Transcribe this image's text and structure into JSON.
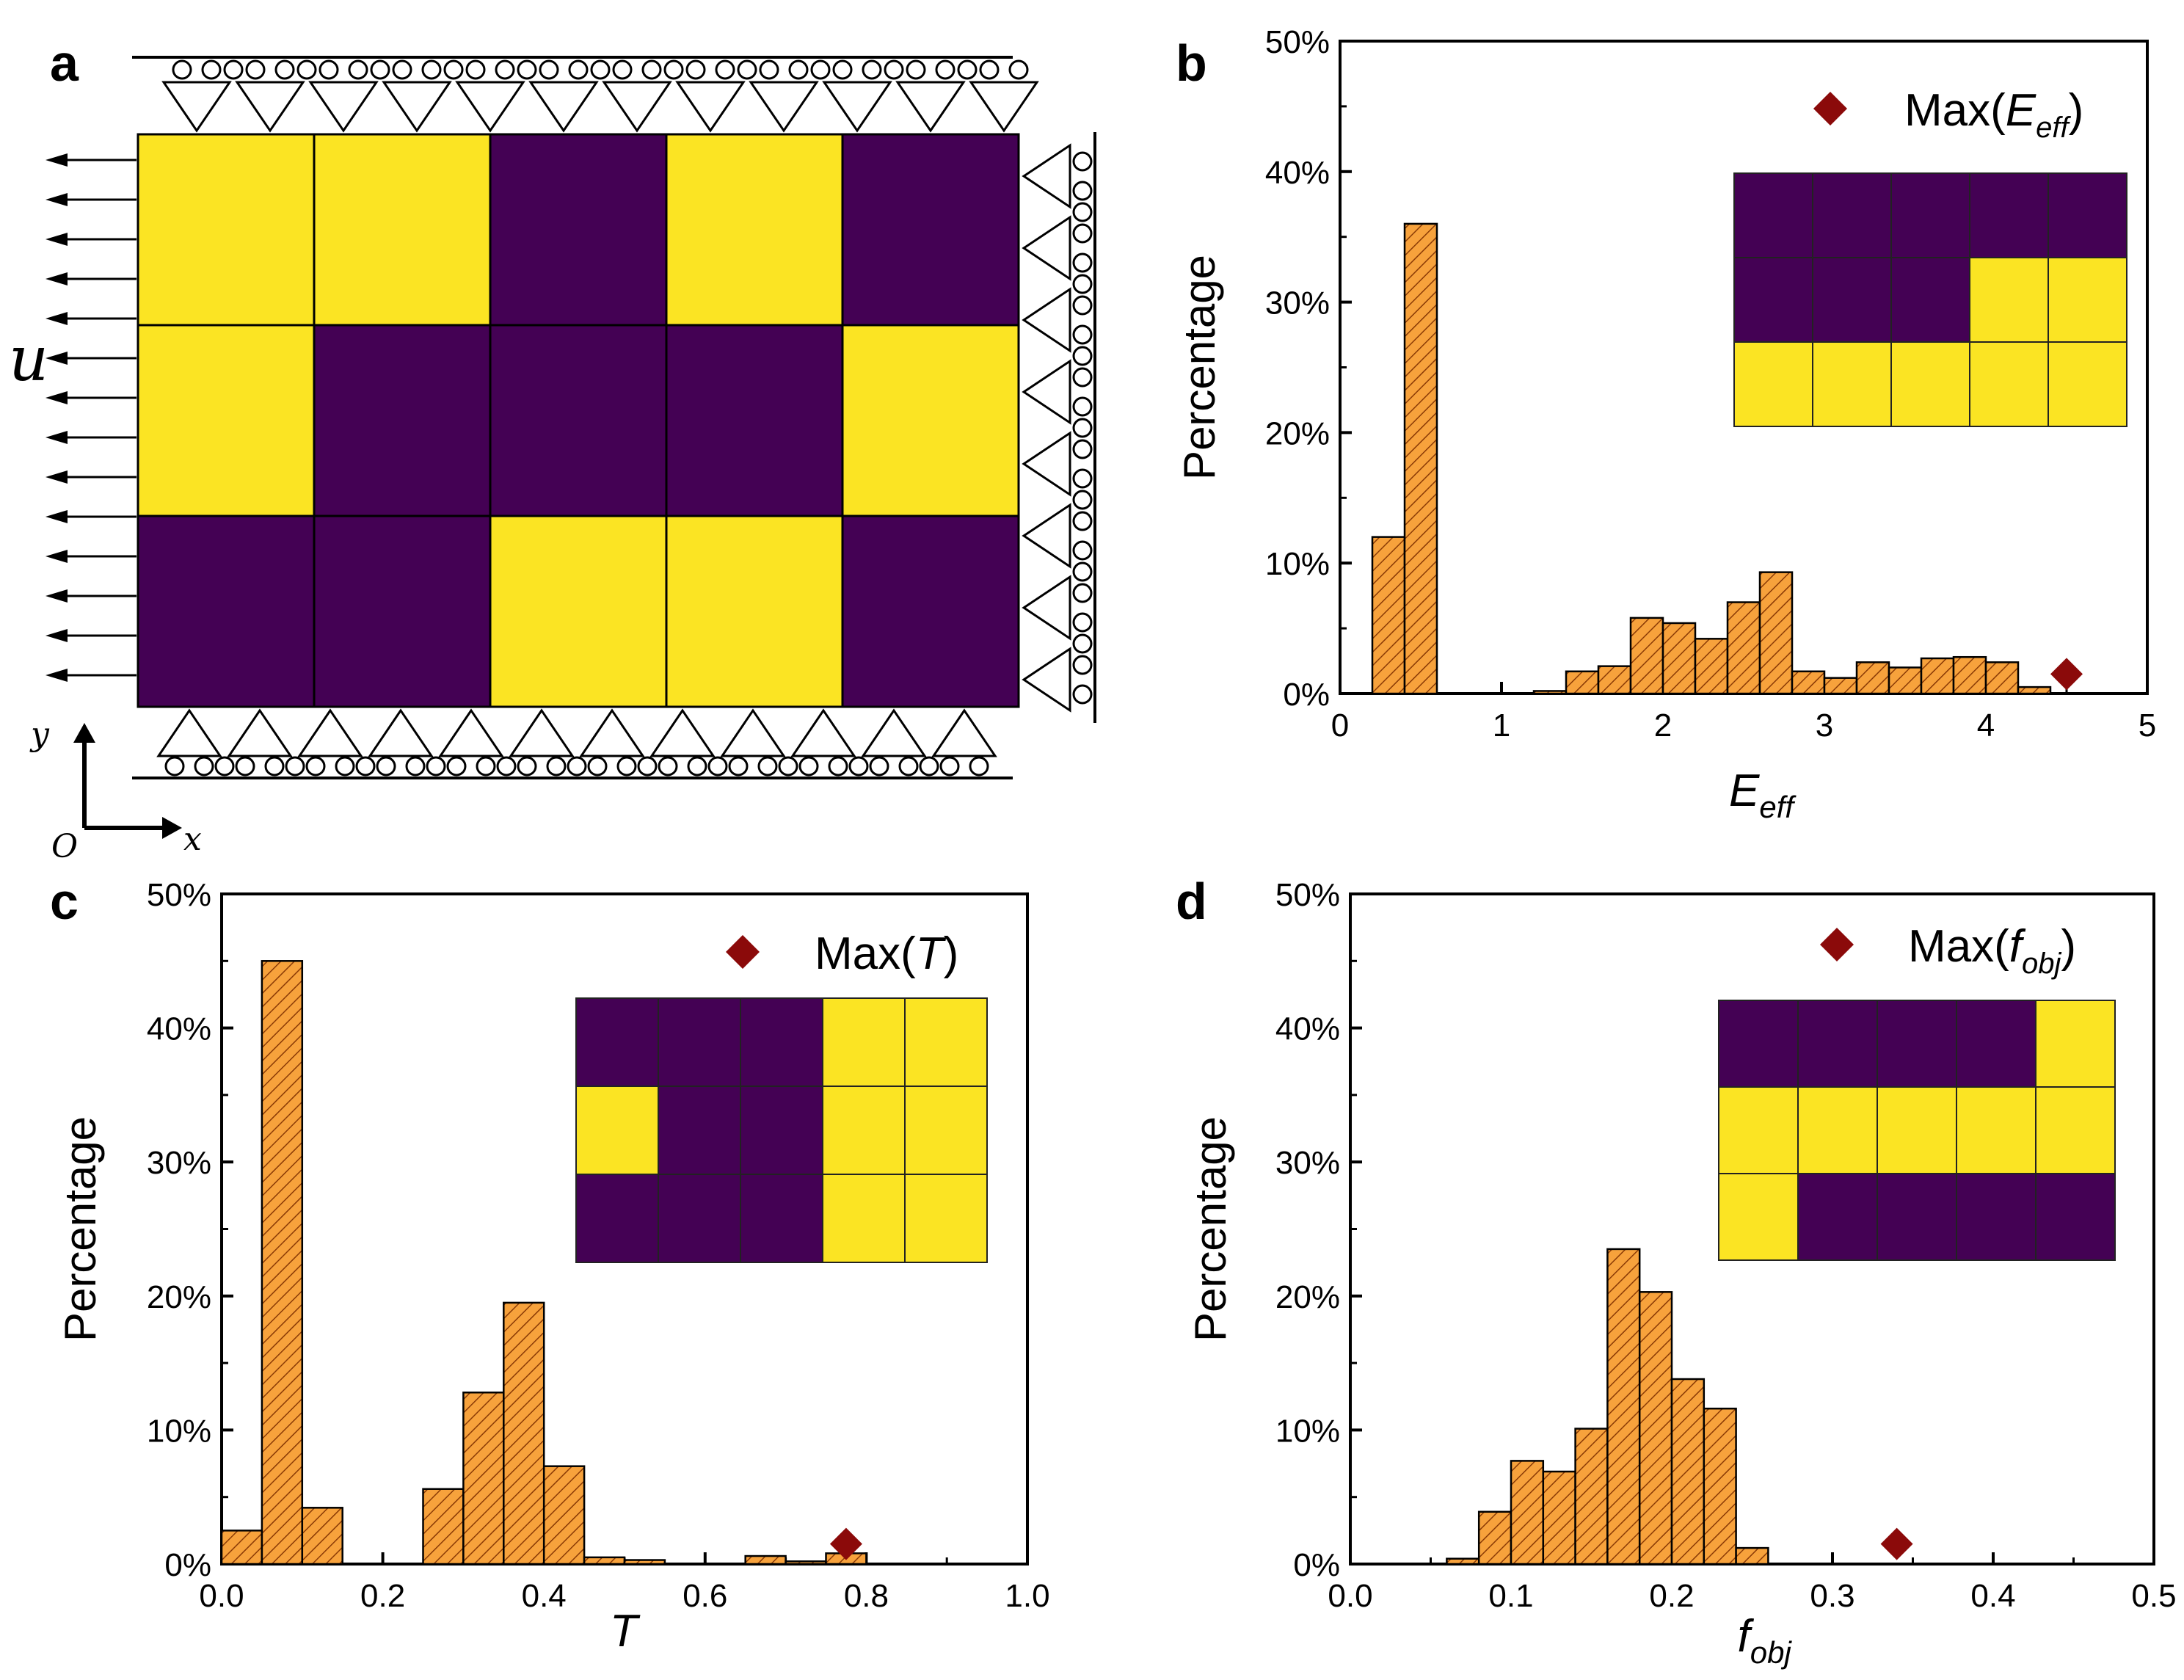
{
  "colors": {
    "yellow": "#FBE423",
    "purple": "#440154",
    "bar_fill": "#F7A23C",
    "bar_hatch": "#8A3A05",
    "marker": "#8B0A0A"
  },
  "panel_a": {
    "label": "a",
    "load_label": "u",
    "axis_y": "y",
    "axis_x": "x",
    "origin": "O",
    "grid": [
      [
        "Y",
        "Y",
        "P",
        "Y",
        "P"
      ],
      [
        "Y",
        "P",
        "P",
        "P",
        "Y"
      ],
      [
        "P",
        "P",
        "Y",
        "Y",
        "P"
      ]
    ]
  },
  "chart_data": [
    {
      "panel": "b",
      "type": "bar",
      "ylabel": "Percentage",
      "xlabel": "E",
      "xlabel_sub": "eff",
      "xlim": [
        0,
        5
      ],
      "ylim": [
        0,
        50
      ],
      "x_ticks": [
        "0",
        "1",
        "2",
        "3",
        "4",
        "5"
      ],
      "y_ticks": [
        "0%",
        "10%",
        "20%",
        "30%",
        "40%",
        "50%"
      ],
      "bin_width": 0.2,
      "bins": [
        {
          "x": 0.2,
          "v": 12.0
        },
        {
          "x": 0.4,
          "v": 36.0
        },
        {
          "x": 1.2,
          "v": 0.2
        },
        {
          "x": 1.4,
          "v": 1.7
        },
        {
          "x": 1.6,
          "v": 2.1
        },
        {
          "x": 1.8,
          "v": 5.8
        },
        {
          "x": 2.0,
          "v": 5.4
        },
        {
          "x": 2.2,
          "v": 4.2
        },
        {
          "x": 2.4,
          "v": 7.0
        },
        {
          "x": 2.6,
          "v": 9.3
        },
        {
          "x": 2.8,
          "v": 1.7
        },
        {
          "x": 3.0,
          "v": 1.2
        },
        {
          "x": 3.2,
          "v": 2.4
        },
        {
          "x": 3.4,
          "v": 2.0
        },
        {
          "x": 3.6,
          "v": 2.7
        },
        {
          "x": 3.8,
          "v": 2.8
        },
        {
          "x": 4.0,
          "v": 2.4
        },
        {
          "x": 4.2,
          "v": 0.5
        }
      ],
      "max_marker": {
        "x": 4.5,
        "y": 1.5
      },
      "legend": {
        "prefix": "Max(",
        "var": "E",
        "sub": "eff",
        "suffix": ")"
      },
      "inset": [
        [
          "P",
          "P",
          "P",
          "P",
          "P"
        ],
        [
          "P",
          "P",
          "P",
          "Y",
          "Y"
        ],
        [
          "Y",
          "Y",
          "Y",
          "Y",
          "Y"
        ]
      ]
    },
    {
      "panel": "c",
      "type": "bar",
      "ylabel": "Percentage",
      "xlabel": "T",
      "xlabel_sub": "",
      "xlim": [
        0,
        1
      ],
      "ylim": [
        0,
        50
      ],
      "x_ticks": [
        "0.0",
        "0.2",
        "0.4",
        "0.6",
        "0.8",
        "1.0"
      ],
      "y_ticks": [
        "0%",
        "10%",
        "20%",
        "30%",
        "40%",
        "50%"
      ],
      "bin_width": 0.05,
      "bins": [
        {
          "x": 0.0,
          "v": 2.5
        },
        {
          "x": 0.05,
          "v": 45.0
        },
        {
          "x": 0.1,
          "v": 4.2
        },
        {
          "x": 0.25,
          "v": 5.6
        },
        {
          "x": 0.3,
          "v": 12.8
        },
        {
          "x": 0.35,
          "v": 19.5
        },
        {
          "x": 0.4,
          "v": 7.3
        },
        {
          "x": 0.45,
          "v": 0.5
        },
        {
          "x": 0.5,
          "v": 0.3
        },
        {
          "x": 0.65,
          "v": 0.6
        },
        {
          "x": 0.7,
          "v": 0.2
        },
        {
          "x": 0.75,
          "v": 0.8
        }
      ],
      "max_marker": {
        "x": 0.775,
        "y": 1.5
      },
      "legend": {
        "prefix": "Max(",
        "var": "T",
        "sub": "",
        "suffix": ")"
      },
      "inset": [
        [
          "P",
          "P",
          "P",
          "Y",
          "Y"
        ],
        [
          "Y",
          "P",
          "P",
          "Y",
          "Y"
        ],
        [
          "P",
          "P",
          "P",
          "Y",
          "Y"
        ]
      ]
    },
    {
      "panel": "d",
      "type": "bar",
      "ylabel": "Percentage",
      "xlabel": "f",
      "xlabel_sub": "obj",
      "xlim": [
        0,
        0.5
      ],
      "ylim": [
        0,
        50
      ],
      "x_ticks": [
        "0.0",
        "0.1",
        "0.2",
        "0.3",
        "0.4",
        "0.5"
      ],
      "y_ticks": [
        "0%",
        "10%",
        "20%",
        "30%",
        "40%",
        "50%"
      ],
      "bin_width": 0.02,
      "bins": [
        {
          "x": 0.06,
          "v": 0.4
        },
        {
          "x": 0.08,
          "v": 3.9
        },
        {
          "x": 0.1,
          "v": 7.7
        },
        {
          "x": 0.12,
          "v": 6.9
        },
        {
          "x": 0.14,
          "v": 10.1
        },
        {
          "x": 0.16,
          "v": 23.5
        },
        {
          "x": 0.18,
          "v": 20.3
        },
        {
          "x": 0.2,
          "v": 13.8
        },
        {
          "x": 0.22,
          "v": 11.6
        },
        {
          "x": 0.24,
          "v": 1.2
        }
      ],
      "max_marker": {
        "x": 0.34,
        "y": 1.5
      },
      "legend": {
        "prefix": "Max(",
        "var": "f",
        "sub": "obj",
        "suffix": ")"
      },
      "inset": [
        [
          "P",
          "P",
          "P",
          "P",
          "Y"
        ],
        [
          "Y",
          "Y",
          "Y",
          "Y",
          "Y"
        ],
        [
          "Y",
          "P",
          "P",
          "P",
          "P"
        ]
      ]
    }
  ]
}
